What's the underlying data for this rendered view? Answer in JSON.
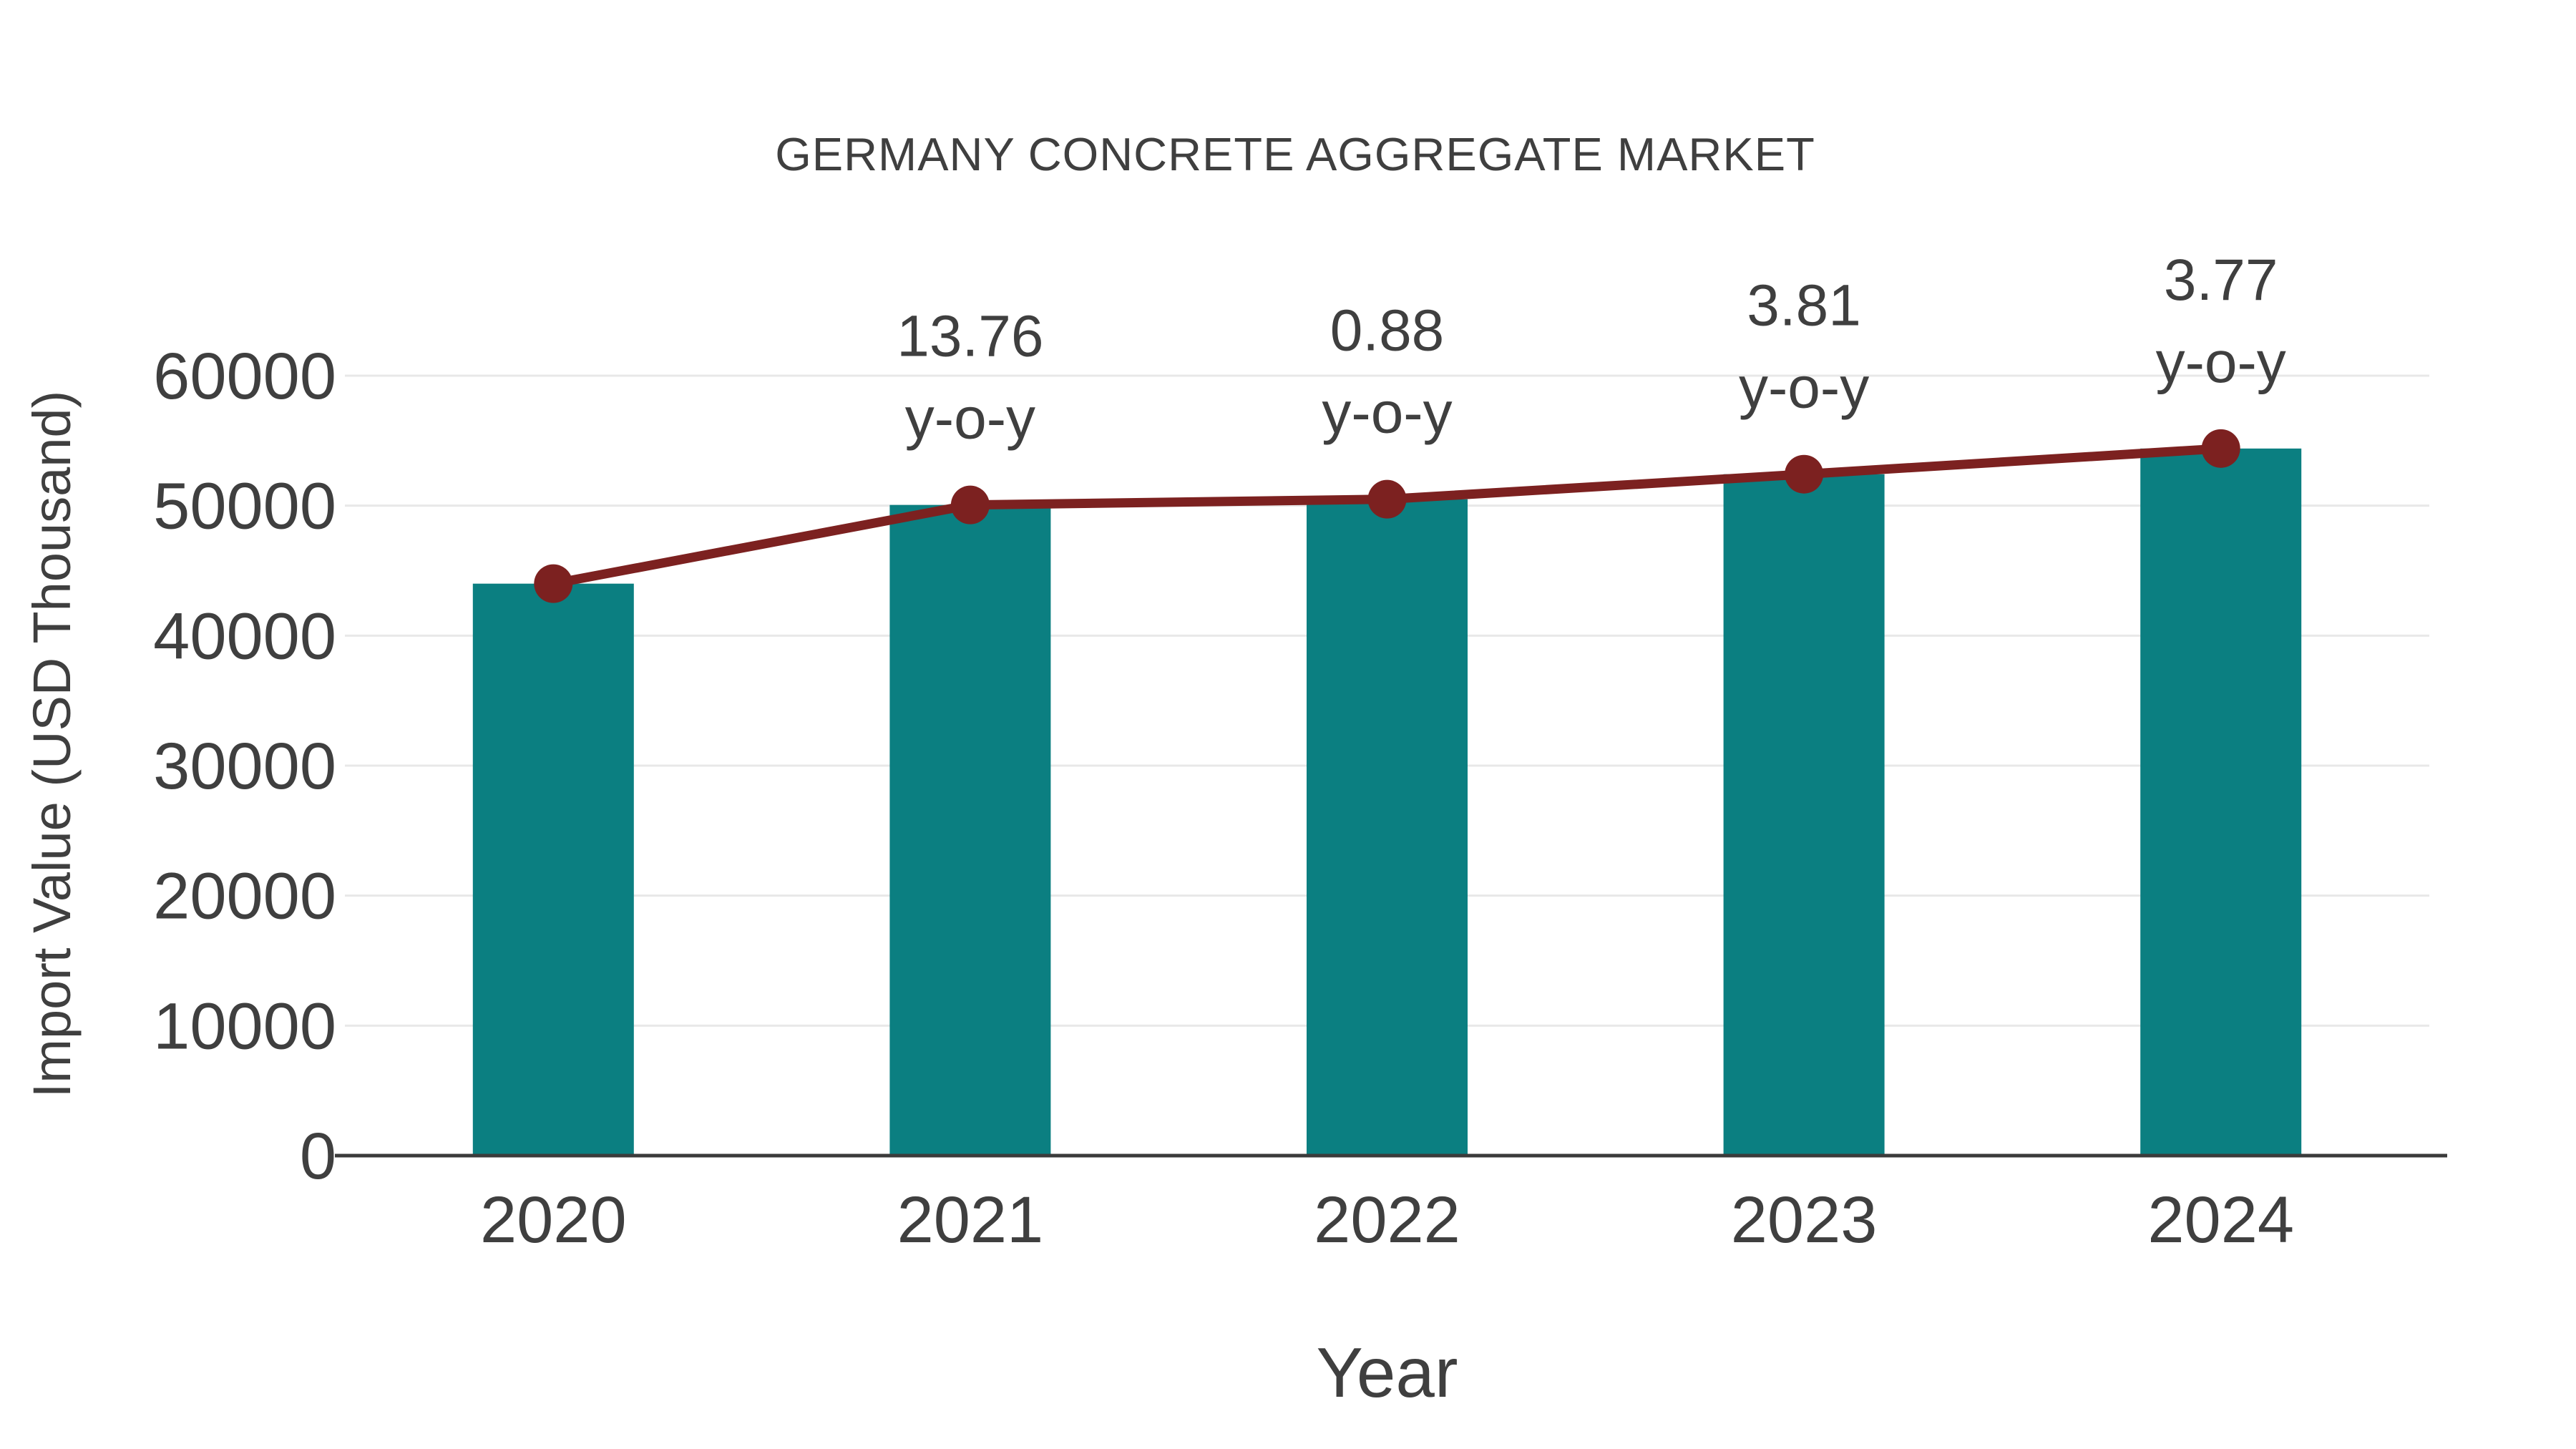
{
  "chart_data": {
    "type": "bar",
    "title": "GERMANY CONCRETE AGGREGATE MARKET",
    "xlabel": "Year",
    "ylabel": "Import Value (USD Thousand)",
    "categories": [
      "2020",
      "2021",
      "2022",
      "2023",
      "2024"
    ],
    "series": [
      {
        "name": "import-value-bars",
        "type": "bar",
        "values": [
          44000,
          50054,
          50495,
          52419,
          54395
        ]
      },
      {
        "name": "import-value-line",
        "type": "line",
        "values": [
          44000,
          50054,
          50495,
          52419,
          54395
        ]
      }
    ],
    "annotations": [
      {
        "category": "2021",
        "line1": "13.76",
        "line2": "y-o-y"
      },
      {
        "category": "2022",
        "line1": "0.88",
        "line2": "y-o-y"
      },
      {
        "category": "2023",
        "line1": "3.81",
        "line2": "y-o-y"
      },
      {
        "category": "2024",
        "line1": "3.77",
        "line2": "y-o-y"
      }
    ],
    "yticks": [
      0,
      10000,
      20000,
      30000,
      40000,
      50000,
      60000
    ],
    "ylim": [
      0,
      65000
    ],
    "grid": true,
    "legend": false
  },
  "colors": {
    "bar": "#0b7f81",
    "line": "#7c2120",
    "marker": "#7c2120",
    "grid": "#e8e8e8",
    "axis": "#3b3b3b",
    "text": "#3f3f3f",
    "background": "#ffffff"
  }
}
